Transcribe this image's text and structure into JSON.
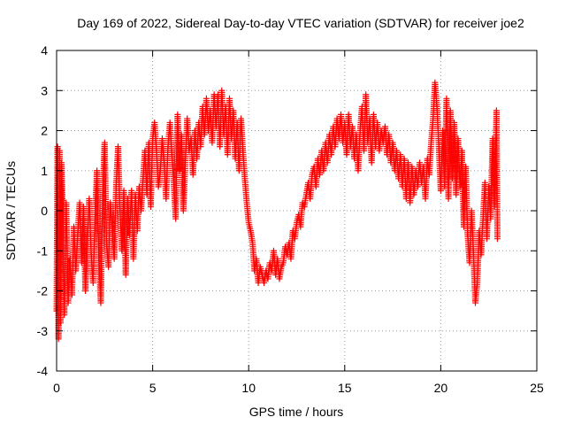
{
  "chart_data": {
    "type": "scatter",
    "title": "Day 169 of 2022, Sidereal Day-to-day VTEC variation (SDTVAR) for receiver joe2",
    "xlabel": "GPS time / hours",
    "ylabel": "SDTVAR / TECUs",
    "xlim": [
      0,
      25
    ],
    "ylim": [
      -4,
      4
    ],
    "xticks": [
      0,
      5,
      10,
      15,
      20,
      25
    ],
    "yticks": [
      -4,
      -3,
      -2,
      -1,
      0,
      1,
      2,
      3,
      4
    ],
    "grid": true,
    "marker": "+",
    "color": "#ff0000",
    "series": [
      {
        "name": "SDTVAR",
        "points": [
          [
            0.0,
            -2.5
          ],
          [
            0.05,
            1.6
          ],
          [
            0.1,
            -3.2
          ],
          [
            0.15,
            1.5
          ],
          [
            0.2,
            -2.8
          ],
          [
            0.25,
            1.2
          ],
          [
            0.3,
            0.3
          ],
          [
            0.4,
            -2.6
          ],
          [
            0.5,
            0.2
          ],
          [
            0.6,
            -2.3
          ],
          [
            0.7,
            -1.2
          ],
          [
            0.8,
            -2.1
          ],
          [
            0.9,
            -0.4
          ],
          [
            1.0,
            -1.5
          ],
          [
            1.1,
            -0.6
          ],
          [
            1.2,
            0.2
          ],
          [
            1.3,
            -1.3
          ],
          [
            1.4,
            0.1
          ],
          [
            1.5,
            -2.0
          ],
          [
            1.6,
            -0.8
          ],
          [
            1.7,
            0.3
          ],
          [
            1.8,
            -1.1
          ],
          [
            1.9,
            -1.8
          ],
          [
            2.0,
            -0.2
          ],
          [
            2.1,
            1.0
          ],
          [
            2.2,
            -1.2
          ],
          [
            2.3,
            -2.3
          ],
          [
            2.4,
            0.4
          ],
          [
            2.5,
            1.7
          ],
          [
            2.6,
            -0.8
          ],
          [
            2.7,
            -1.4
          ],
          [
            2.8,
            0.2
          ],
          [
            2.9,
            -0.5
          ],
          [
            3.0,
            -1.2
          ],
          [
            3.1,
            0.6
          ],
          [
            3.2,
            1.6
          ],
          [
            3.3,
            0.0
          ],
          [
            3.4,
            -1.0
          ],
          [
            3.5,
            0.5
          ],
          [
            3.6,
            -1.6
          ],
          [
            3.7,
            0.3
          ],
          [
            3.8,
            -0.6
          ],
          [
            3.9,
            0.5
          ],
          [
            4.0,
            -1.2
          ],
          [
            4.1,
            0.4
          ],
          [
            4.2,
            -0.5
          ],
          [
            4.3,
            0.6
          ],
          [
            4.4,
            0.0
          ],
          [
            4.5,
            0.8
          ],
          [
            4.6,
            1.5
          ],
          [
            4.7,
            0.4
          ],
          [
            4.8,
            1.7
          ],
          [
            4.9,
            0.1
          ],
          [
            5.0,
            1.8
          ],
          [
            5.1,
            2.2
          ],
          [
            5.2,
            1.5
          ],
          [
            5.3,
            0.6
          ],
          [
            5.4,
            1.0
          ],
          [
            5.5,
            1.8
          ],
          [
            5.6,
            1.2
          ],
          [
            5.7,
            0.3
          ],
          [
            5.8,
            1.6
          ],
          [
            5.9,
            2.2
          ],
          [
            6.0,
            1.4
          ],
          [
            6.1,
            0.7
          ],
          [
            6.2,
            -0.2
          ],
          [
            6.3,
            2.4
          ],
          [
            6.4,
            1.0
          ],
          [
            6.5,
            1.9
          ],
          [
            6.6,
            0.0
          ],
          [
            6.7,
            1.2
          ],
          [
            6.8,
            2.3
          ],
          [
            6.9,
            1.5
          ],
          [
            7.0,
            1.8
          ],
          [
            7.1,
            0.9
          ],
          [
            7.2,
            2.0
          ],
          [
            7.3,
            1.3
          ],
          [
            7.4,
            2.2
          ],
          [
            7.5,
            1.6
          ],
          [
            7.6,
            2.6
          ],
          [
            7.7,
            1.9
          ],
          [
            7.8,
            2.8
          ],
          [
            7.9,
            2.0
          ],
          [
            8.0,
            2.5
          ],
          [
            8.1,
            1.7
          ],
          [
            8.2,
            2.9
          ],
          [
            8.3,
            2.1
          ],
          [
            8.4,
            2.9
          ],
          [
            8.5,
            1.6
          ],
          [
            8.6,
            3.0
          ],
          [
            8.7,
            1.9
          ],
          [
            8.8,
            2.6
          ],
          [
            8.9,
            1.4
          ],
          [
            9.0,
            2.8
          ],
          [
            9.1,
            1.8
          ],
          [
            9.2,
            2.5
          ],
          [
            9.3,
            1.3
          ],
          [
            9.4,
            2.2
          ],
          [
            9.5,
            1.0
          ],
          [
            9.6,
            2.3
          ],
          [
            9.7,
            1.5
          ],
          [
            9.8,
            0.8
          ],
          [
            9.9,
            0.2
          ],
          [
            10.0,
            -0.3
          ],
          [
            10.1,
            -0.5
          ],
          [
            10.2,
            -0.8
          ],
          [
            10.3,
            -1.5
          ],
          [
            10.4,
            -1.2
          ],
          [
            10.5,
            -1.8
          ],
          [
            10.6,
            -1.4
          ],
          [
            10.7,
            -1.6
          ],
          [
            10.8,
            -1.8
          ],
          [
            10.9,
            -1.5
          ],
          [
            11.0,
            -1.7
          ],
          [
            11.1,
            -1.3
          ],
          [
            11.2,
            -1.5
          ],
          [
            11.3,
            -1.0
          ],
          [
            11.4,
            -1.6
          ],
          [
            11.5,
            -1.2
          ],
          [
            11.6,
            -1.7
          ],
          [
            11.7,
            -1.4
          ],
          [
            11.8,
            -1.3
          ],
          [
            11.9,
            -0.9
          ],
          [
            12.0,
            -1.1
          ],
          [
            12.1,
            -0.8
          ],
          [
            12.2,
            -1.2
          ],
          [
            12.3,
            -0.5
          ],
          [
            12.4,
            -0.7
          ],
          [
            12.5,
            -0.3
          ],
          [
            12.6,
            -0.1
          ],
          [
            12.7,
            -0.4
          ],
          [
            12.8,
            0.2
          ],
          [
            12.9,
            0.1
          ],
          [
            13.0,
            0.4
          ],
          [
            13.1,
            0.7
          ],
          [
            13.2,
            0.3
          ],
          [
            13.3,
            0.9
          ],
          [
            13.4,
            1.1
          ],
          [
            13.5,
            0.6
          ],
          [
            13.6,
            1.3
          ],
          [
            13.7,
            0.9
          ],
          [
            13.8,
            1.5
          ],
          [
            13.9,
            1.0
          ],
          [
            14.0,
            1.7
          ],
          [
            14.1,
            1.2
          ],
          [
            14.2,
            1.9
          ],
          [
            14.3,
            1.4
          ],
          [
            14.4,
            2.1
          ],
          [
            14.5,
            1.6
          ],
          [
            14.6,
            2.3
          ],
          [
            14.7,
            1.8
          ],
          [
            14.8,
            2.4
          ],
          [
            14.9,
            1.7
          ],
          [
            15.0,
            2.2
          ],
          [
            15.1,
            1.4
          ],
          [
            15.2,
            2.4
          ],
          [
            15.3,
            1.6
          ],
          [
            15.4,
            2.1
          ],
          [
            15.5,
            1.3
          ],
          [
            15.6,
            1.9
          ],
          [
            15.7,
            1.0
          ],
          [
            15.8,
            2.0
          ],
          [
            15.9,
            2.6
          ],
          [
            16.0,
            1.5
          ],
          [
            16.1,
            2.9
          ],
          [
            16.2,
            1.7
          ],
          [
            16.3,
            2.3
          ],
          [
            16.4,
            1.2
          ],
          [
            16.5,
            2.4
          ],
          [
            16.6,
            1.6
          ],
          [
            16.7,
            2.2
          ],
          [
            16.8,
            1.5
          ],
          [
            16.9,
            2.0
          ],
          [
            17.0,
            1.7
          ],
          [
            17.1,
            2.1
          ],
          [
            17.2,
            1.4
          ],
          [
            17.3,
            1.9
          ],
          [
            17.4,
            1.2
          ],
          [
            17.5,
            1.7
          ],
          [
            17.6,
            1.0
          ],
          [
            17.7,
            1.5
          ],
          [
            17.8,
            0.8
          ],
          [
            17.9,
            1.4
          ],
          [
            18.0,
            0.6
          ],
          [
            18.1,
            1.3
          ],
          [
            18.2,
            0.3
          ],
          [
            18.3,
            1.2
          ],
          [
            18.4,
            0.2
          ],
          [
            18.5,
            1.1
          ],
          [
            18.6,
            0.4
          ],
          [
            18.7,
            1.0
          ],
          [
            18.8,
            0.6
          ],
          [
            18.9,
            1.2
          ],
          [
            19.0,
            0.7
          ],
          [
            19.1,
            1.1
          ],
          [
            19.2,
            0.3
          ],
          [
            19.3,
            1.3
          ],
          [
            19.4,
            0.9
          ],
          [
            19.5,
            1.7
          ],
          [
            19.6,
            2.3
          ],
          [
            19.7,
            3.2
          ],
          [
            19.8,
            2.6
          ],
          [
            19.9,
            1.6
          ],
          [
            20.0,
            0.5
          ],
          [
            20.1,
            2.0
          ],
          [
            20.2,
            0.6
          ],
          [
            20.3,
            2.8
          ],
          [
            20.4,
            0.3
          ],
          [
            20.5,
            2.5
          ],
          [
            20.6,
            0.8
          ],
          [
            20.7,
            2.2
          ],
          [
            20.8,
            0.4
          ],
          [
            20.9,
            1.8
          ],
          [
            21.0,
            0.6
          ],
          [
            21.1,
            1.5
          ],
          [
            21.2,
            -0.4
          ],
          [
            21.3,
            1.1
          ],
          [
            21.4,
            -0.6
          ],
          [
            21.5,
            -1.3
          ],
          [
            21.6,
            0.0
          ],
          [
            21.7,
            -1.0
          ],
          [
            21.8,
            -2.3
          ],
          [
            21.9,
            -1.8
          ],
          [
            22.0,
            -0.5
          ],
          [
            22.1,
            -1.1
          ],
          [
            22.2,
            -0.2
          ],
          [
            22.3,
            0.7
          ],
          [
            22.4,
            -0.7
          ],
          [
            22.5,
            0.6
          ],
          [
            22.6,
            -0.2
          ],
          [
            22.7,
            1.8
          ],
          [
            22.8,
            0.1
          ],
          [
            22.9,
            2.5
          ],
          [
            22.95,
            -0.7
          ]
        ]
      }
    ]
  }
}
